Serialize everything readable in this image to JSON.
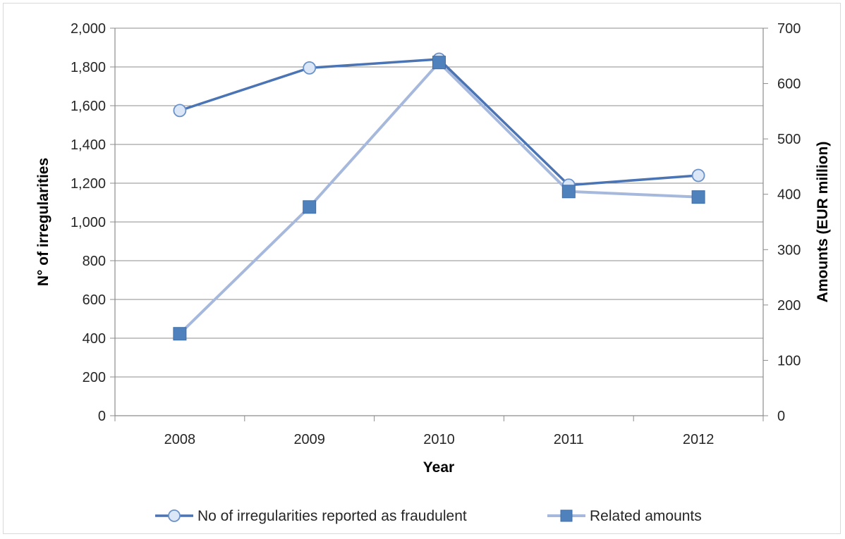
{
  "chart_data": {
    "type": "line",
    "x": [
      "2008",
      "2009",
      "2010",
      "2011",
      "2012"
    ],
    "xlabel": "Year",
    "ylabel": "N° of irregularities",
    "y2label": "Amounts (EUR million)",
    "ylim": [
      0,
      2000
    ],
    "y2lim": [
      0,
      700
    ],
    "yticks": [
      "0",
      "200",
      "400",
      "600",
      "800",
      "1,000",
      "1,200",
      "1,400",
      "1,600",
      "1,800",
      "2,000"
    ],
    "y2ticks": [
      "0",
      "100",
      "200",
      "300",
      "400",
      "500",
      "600",
      "700"
    ],
    "grid": true,
    "legend_position": "bottom",
    "series": [
      {
        "name": "No of irregularities reported as fraudulent",
        "axis": "left",
        "marker": "circle",
        "color": "#4a74b4",
        "values": [
          1575,
          1795,
          1840,
          1190,
          1240
        ]
      },
      {
        "name": "Related amounts",
        "axis": "right",
        "marker": "square",
        "color": "#a6b9dd",
        "marker_color": "#4f81bd",
        "values": [
          148,
          377,
          638,
          405,
          395
        ]
      }
    ]
  }
}
